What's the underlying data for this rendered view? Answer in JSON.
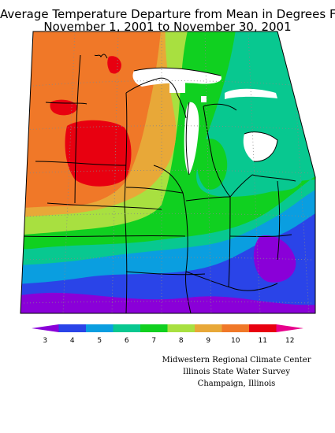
{
  "title": {
    "line1": "Average Temperature Departure from Mean in Degrees F",
    "line2": "November 1, 2001 to November 30, 2001"
  },
  "legend": {
    "colors": [
      "#8a00d8",
      "#2a44e8",
      "#0a9ee0",
      "#08c890",
      "#10d020",
      "#a8e040",
      "#e8a838",
      "#f07828",
      "#e80010",
      "#e8008c"
    ],
    "labels": [
      "3",
      "4",
      "5",
      "6",
      "7",
      "8",
      "9",
      "10",
      "11",
      "12"
    ]
  },
  "credits": {
    "line1": "Midwestern Regional Climate Center",
    "line2": "Illinois State Water Survey",
    "line3": "Champaign, Illinois"
  }
}
